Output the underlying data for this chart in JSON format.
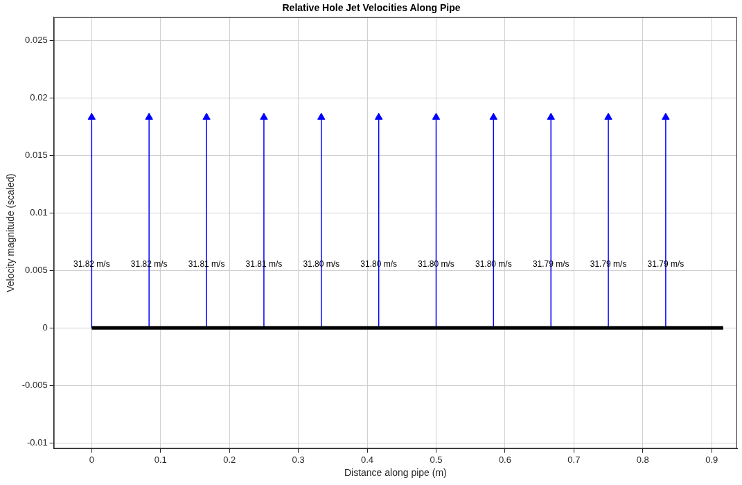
{
  "chart_data": {
    "type": "lollipop",
    "title": "Relative Hole Jet Velocities Along Pipe",
    "xlabel": "Distance along pipe (m)",
    "ylabel": "Velocity magnitude (scaled)",
    "xlim": [
      -0.055,
      0.937
    ],
    "ylim": [
      -0.0105,
      0.027
    ],
    "xticks": [
      0,
      0.1,
      0.2,
      0.3,
      0.4,
      0.5,
      0.6,
      0.7,
      0.8,
      0.9
    ],
    "yticks": [
      -0.01,
      -0.005,
      0,
      0.005,
      0.01,
      0.015,
      0.02,
      0.025
    ],
    "grid": true,
    "legend": false,
    "annotations": [
      "31.82 m/s",
      "31.82 m/s",
      "31.81 m/s",
      "31.81 m/s",
      "31.80 m/s",
      "31.80 m/s",
      "31.80 m/s",
      "31.80 m/s",
      "31.79 m/s",
      "31.79 m/s",
      "31.79 m/s"
    ],
    "series": [
      {
        "type": "line",
        "color": "#000000",
        "x": [
          0,
          0.9167
        ],
        "values": [
          0,
          0
        ]
      },
      {
        "marker": "triangle",
        "color": "#0000ff",
        "x": [
          0,
          0.0833,
          0.1667,
          0.25,
          0.3333,
          0.4167,
          0.5,
          0.5833,
          0.6667,
          0.75,
          0.8333
        ],
        "values": [
          0.0183,
          0.0183,
          0.0183,
          0.0183,
          0.0183,
          0.0183,
          0.0183,
          0.0183,
          0.0183,
          0.0183,
          0.0183
        ]
      }
    ]
  }
}
